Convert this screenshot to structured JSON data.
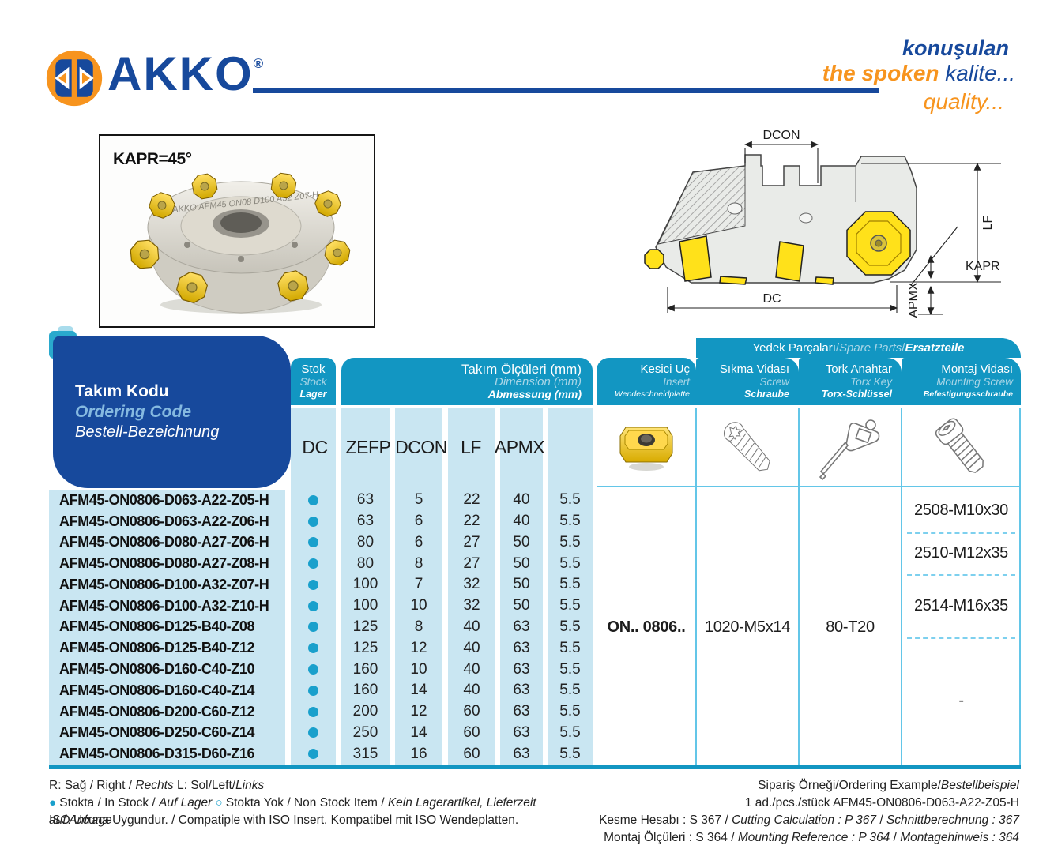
{
  "brand": {
    "name": "AKKO",
    "reg": "®",
    "slogan": {
      "tr1": "konuşulan",
      "en1": "the spoken ",
      "tr2": "kalite...",
      "en2": "quality..."
    }
  },
  "photo": {
    "caption": "KAPR=45°"
  },
  "drawing": {
    "dcon": "DCON",
    "lf": "LF",
    "kapr": "KAPR",
    "dc": "DC",
    "apmx": "APMX"
  },
  "table": {
    "ordering_code_header": {
      "tr": "Takım Kodu",
      "en": "Ordering Code",
      "de": "Bestell-Bezeichnung"
    },
    "stock_header": {
      "tr": "Stok",
      "en": "Stock",
      "de": "Lager"
    },
    "dimensions_header": {
      "tr": "Takım Ölçüleri (mm)",
      "en": "Dimension (mm)",
      "de": "Abmessung (mm)"
    },
    "dimension_columns": [
      "DC",
      "ZEFP",
      "DCON",
      "LF",
      "APMX"
    ],
    "insert_header": {
      "tr": "Kesici Uç",
      "en": "Insert",
      "de": "Wendeschneidplatte"
    },
    "spare_parts_banner": [
      {
        "t": "Yedek Parçaları "
      },
      {
        "t": "/ ",
        "c": "lt"
      },
      {
        "t": "Spare Parts",
        "c": "lt i"
      },
      {
        "t": " / ",
        "c": "lt"
      },
      {
        "t": "Ersatzteile",
        "c": "wi"
      }
    ],
    "screw_header": {
      "tr": "Sıkma Vidası",
      "en": "Screw",
      "de": "Schraube"
    },
    "torx_header": {
      "tr": "Tork Anahtar",
      "en": "Torx Key",
      "de": "Torx-Schlüssel"
    },
    "mounting_header": {
      "tr": "Montaj Vidası",
      "en": "Mounting Screw",
      "de": "Befestigungsschraube"
    },
    "rows": [
      {
        "code": "AFM45-ON0806-D063-A22-Z05-H",
        "in_stock": true,
        "dc": "63",
        "zefp": "5",
        "dcon": "22",
        "lf": "40",
        "apmx": "5.5"
      },
      {
        "code": "AFM45-ON0806-D063-A22-Z06-H",
        "in_stock": true,
        "dc": "63",
        "zefp": "6",
        "dcon": "22",
        "lf": "40",
        "apmx": "5.5"
      },
      {
        "code": "AFM45-ON0806-D080-A27-Z06-H",
        "in_stock": true,
        "dc": "80",
        "zefp": "6",
        "dcon": "27",
        "lf": "50",
        "apmx": "5.5"
      },
      {
        "code": "AFM45-ON0806-D080-A27-Z08-H",
        "in_stock": true,
        "dc": "80",
        "zefp": "8",
        "dcon": "27",
        "lf": "50",
        "apmx": "5.5"
      },
      {
        "code": "AFM45-ON0806-D100-A32-Z07-H",
        "in_stock": true,
        "dc": "100",
        "zefp": "7",
        "dcon": "32",
        "lf": "50",
        "apmx": "5.5"
      },
      {
        "code": "AFM45-ON0806-D100-A32-Z10-H",
        "in_stock": true,
        "dc": "100",
        "zefp": "10",
        "dcon": "32",
        "lf": "50",
        "apmx": "5.5"
      },
      {
        "code": "AFM45-ON0806-D125-B40-Z08",
        "in_stock": true,
        "dc": "125",
        "zefp": "8",
        "dcon": "40",
        "lf": "63",
        "apmx": "5.5"
      },
      {
        "code": "AFM45-ON0806-D125-B40-Z12",
        "in_stock": true,
        "dc": "125",
        "zefp": "12",
        "dcon": "40",
        "lf": "63",
        "apmx": "5.5"
      },
      {
        "code": "AFM45-ON0806-D160-C40-Z10",
        "in_stock": true,
        "dc": "160",
        "zefp": "10",
        "dcon": "40",
        "lf": "63",
        "apmx": "5.5"
      },
      {
        "code": "AFM45-ON0806-D160-C40-Z14",
        "in_stock": true,
        "dc": "160",
        "zefp": "14",
        "dcon": "40",
        "lf": "63",
        "apmx": "5.5"
      },
      {
        "code": "AFM45-ON0806-D200-C60-Z12",
        "in_stock": true,
        "dc": "200",
        "zefp": "12",
        "dcon": "60",
        "lf": "63",
        "apmx": "5.5"
      },
      {
        "code": "AFM45-ON0806-D250-C60-Z14",
        "in_stock": true,
        "dc": "250",
        "zefp": "14",
        "dcon": "60",
        "lf": "63",
        "apmx": "5.5"
      },
      {
        "code": "AFM45-ON0806-D315-D60-Z16",
        "in_stock": true,
        "dc": "315",
        "zefp": "16",
        "dcon": "60",
        "lf": "63",
        "apmx": "5.5"
      }
    ],
    "insert_code": "ON.. 0806..",
    "screw_code": "1020-M5x14",
    "torx_code": "80-T20",
    "mounting_segments": [
      {
        "code": "2508-M10x30",
        "rows": 2
      },
      {
        "code": "2510-M12x35",
        "rows": 2
      },
      {
        "code": "2514-M16x35",
        "rows": 3
      },
      {
        "code": "-",
        "rows": 6
      }
    ]
  },
  "footnotes": {
    "left1": [
      {
        "t": "R: Sağ / Right / "
      },
      {
        "t": "Rechts",
        "c": "i"
      },
      {
        "t": "    L: Sol/Left/"
      },
      {
        "t": "Links",
        "c": "i"
      }
    ],
    "left2": [
      {
        "t": "● ",
        "c": "dotf"
      },
      {
        "t": "Stokta / In Stock / "
      },
      {
        "t": "Auf Lager",
        "c": "i"
      },
      {
        "t": "   "
      },
      {
        "t": "○ ",
        "c": "doto"
      },
      {
        "t": "Stokta Yok / Non Stock Item / "
      },
      {
        "t": "Kein Lagerartikel, Lieferzeit auf Anfrage",
        "c": "i"
      }
    ],
    "left3": [
      {
        "t": "ISO Ucuna Uygundur. / Compatiple with ISO Insert. Kompatibel mit ISO Wendeplatten."
      }
    ],
    "right1": [
      {
        "t": "Sipariş Örneği/Ordering Example/"
      },
      {
        "t": "Bestellbeispiel",
        "c": "i"
      }
    ],
    "right2": [
      {
        "t": "1 ad./pcs./stück  AFM45-ON0806-D063-A22-Z05-H"
      }
    ],
    "right3": [
      {
        "t": "Kesme Hesabı : S 367 / "
      },
      {
        "t": "Cutting Calculation : P 367",
        "c": "i"
      },
      {
        "t": " / "
      },
      {
        "t": "Schnittberechnung : 367",
        "c": "i"
      }
    ],
    "right4": [
      {
        "t": "Montaj Ölçüleri :  S 364 / "
      },
      {
        "t": "Mounting Reference : P 364",
        "c": "i"
      },
      {
        "t": " / "
      },
      {
        "t": "Montagehinweis : 364",
        "c": "i"
      }
    ]
  },
  "colors": {
    "brand_blue": "#17499c",
    "brand_orange": "#f7941e",
    "header_teal": "#1296c2",
    "cell_light_blue": "#c9e6f2",
    "stock_dot_blue": "#19a0cc",
    "insert_yellow": "#ffe11a"
  }
}
